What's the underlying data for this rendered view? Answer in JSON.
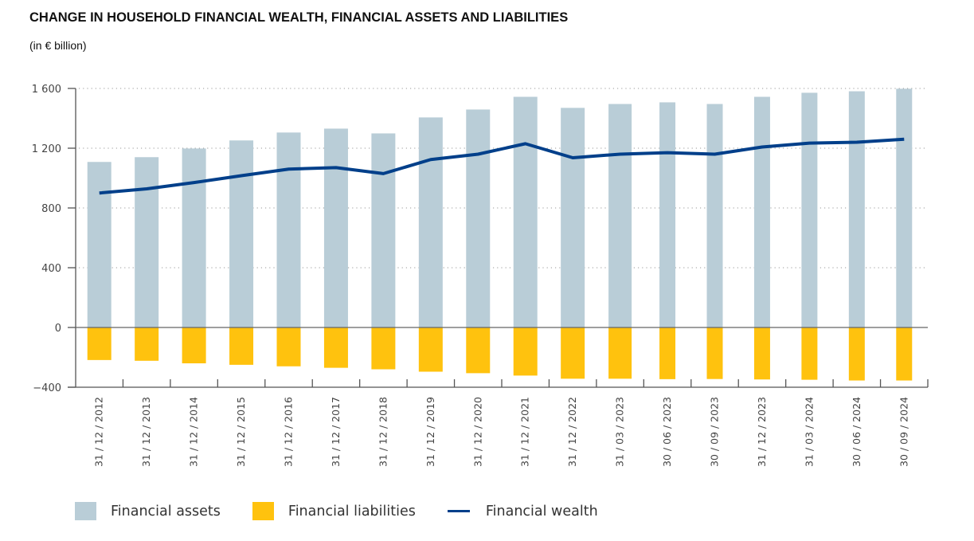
{
  "chart_data": {
    "type": "bar",
    "title": "CHANGE IN HOUSEHOLD FINANCIAL WEALTH, FINANCIAL ASSETS AND LIABILITIES",
    "subtitle": "(in € billion)",
    "xlabel": "",
    "ylabel": "",
    "ylim": [
      -400,
      1600
    ],
    "yticks": [
      -400,
      0,
      400,
      800,
      1200,
      1600
    ],
    "ytick_labels": [
      "−400",
      "0",
      "400",
      "800",
      "1 200",
      "1 600"
    ],
    "grid": true,
    "legend_position": "bottom-left",
    "categories": [
      "31 / 12 / 2012",
      "31 / 12 / 2013",
      "31 / 12 / 2014",
      "31 / 12 / 2015",
      "31 / 12 / 2016",
      "31 / 12 / 2017",
      "31 / 12 / 2018",
      "31 / 12 / 2019",
      "31 / 12 / 2020",
      "31 / 12 / 2021",
      "31 / 12 / 2022",
      "31 / 03 / 2023",
      "30 / 06 / 2023",
      "30 / 09 / 2023",
      "31 / 12 / 2023",
      "31 / 03 / 2024",
      "30 / 06 / 2024",
      "30 / 09 / 2024"
    ],
    "series": [
      {
        "name": "Financial assets",
        "type": "bar",
        "color": "#b9cdd7",
        "values": [
          1108,
          1140,
          1198,
          1252,
          1305,
          1331,
          1299,
          1406,
          1459,
          1544,
          1470,
          1496,
          1507,
          1496,
          1544,
          1571,
          1581,
          1598
        ]
      },
      {
        "name": "Financial liabilities",
        "type": "bar",
        "color": "#ffc20e",
        "values": [
          -218,
          -223,
          -240,
          -250,
          -260,
          -270,
          -280,
          -296,
          -306,
          -322,
          -343,
          -343,
          -346,
          -345,
          -348,
          -350,
          -355,
          -355
        ]
      },
      {
        "name": "Financial wealth",
        "type": "line",
        "color": "#003f8a",
        "values": [
          900,
          928,
          970,
          1016,
          1060,
          1070,
          1030,
          1124,
          1160,
          1230,
          1136,
          1160,
          1170,
          1160,
          1208,
          1234,
          1240,
          1260
        ]
      }
    ]
  }
}
